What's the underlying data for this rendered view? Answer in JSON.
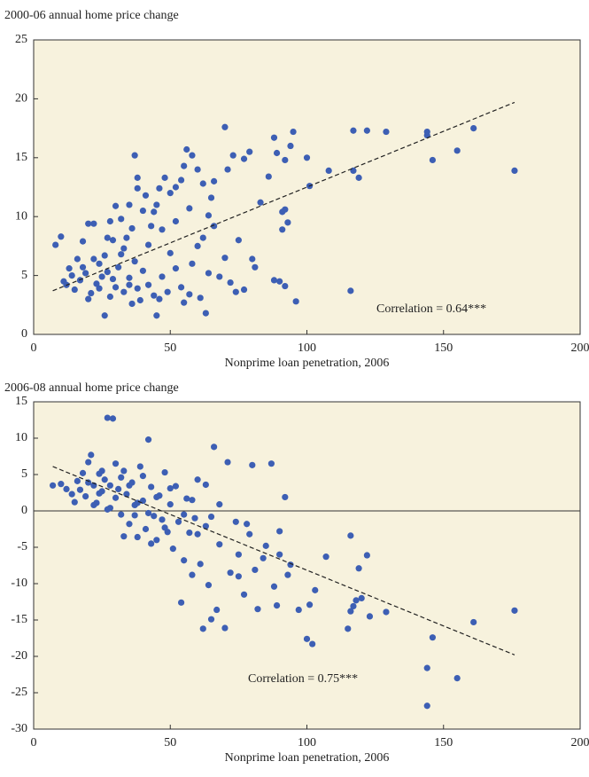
{
  "chart_data": [
    {
      "type": "scatter",
      "title": "2000-06 annual home price change",
      "xlabel": "Nonprime loan penetration, 2006",
      "annotation": "Correlation = 0.64***",
      "color": "#3d5fb4",
      "xlim": [
        0,
        200
      ],
      "xticks": [
        0,
        50,
        100,
        150,
        200
      ],
      "ylim": [
        0,
        25
      ],
      "yticks": [
        0,
        5,
        10,
        15,
        20,
        25
      ],
      "trendline": {
        "x": [
          7,
          176
        ],
        "y": [
          3.7,
          19.7
        ]
      },
      "x": [
        70,
        95,
        117,
        122,
        129,
        144,
        161,
        176,
        155,
        146,
        144,
        116,
        96,
        117,
        119,
        108,
        101,
        100,
        92,
        94,
        88,
        89,
        91,
        92,
        93,
        91,
        90,
        92,
        88,
        80,
        81,
        74,
        77,
        86,
        83,
        79,
        77,
        73,
        71,
        66,
        65,
        64,
        62,
        60,
        58,
        56,
        55,
        54,
        52,
        50,
        48,
        46,
        45,
        44,
        43,
        41,
        40,
        38,
        37,
        38,
        36,
        35,
        34,
        32,
        30,
        29,
        28,
        27,
        26,
        24,
        22,
        20,
        18,
        16,
        14,
        12,
        10,
        8,
        11,
        13,
        15,
        17,
        19,
        21,
        23,
        25,
        26,
        28,
        30,
        31,
        33,
        35,
        36,
        38,
        40,
        42,
        44,
        45,
        47,
        49,
        50,
        52,
        54,
        55,
        57,
        58,
        60,
        61,
        62,
        63,
        64,
        66,
        68,
        70,
        72,
        75,
        18,
        22,
        27,
        32,
        37,
        42,
        47,
        52,
        57,
        35,
        29,
        24,
        39,
        46,
        20,
        33
      ],
      "y": [
        17.6,
        17.2,
        17.3,
        17.3,
        17.2,
        17.2,
        17.5,
        13.9,
        15.6,
        14.8,
        16.9,
        3.7,
        2.8,
        13.9,
        13.3,
        13.9,
        12.6,
        15.0,
        14.8,
        16.0,
        16.7,
        15.4,
        10.4,
        10.6,
        9.5,
        8.9,
        4.5,
        4.1,
        4.6,
        6.4,
        5.7,
        3.6,
        3.8,
        13.4,
        11.2,
        15.5,
        14.9,
        15.2,
        14.0,
        13.0,
        11.6,
        10.1,
        12.8,
        14.0,
        15.2,
        15.7,
        14.3,
        13.1,
        12.5,
        12.0,
        13.3,
        12.4,
        11.0,
        10.4,
        9.2,
        11.8,
        10.5,
        12.4,
        15.2,
        13.3,
        9.0,
        11.0,
        8.2,
        9.8,
        10.9,
        8.0,
        9.6,
        8.2,
        6.7,
        6.0,
        9.4,
        9.4,
        7.9,
        6.4,
        5.0,
        4.2,
        8.3,
        7.6,
        4.5,
        5.6,
        3.8,
        4.6,
        5.2,
        3.5,
        4.3,
        4.9,
        1.6,
        3.2,
        4.0,
        5.7,
        3.6,
        4.8,
        2.6,
        3.9,
        5.4,
        4.2,
        3.3,
        1.6,
        4.9,
        3.6,
        6.9,
        5.6,
        4.0,
        2.7,
        3.4,
        6.0,
        7.5,
        3.1,
        8.2,
        1.8,
        5.2,
        9.2,
        4.9,
        6.5,
        4.4,
        8.0,
        5.7,
        6.4,
        5.3,
        6.8,
        6.2,
        7.6,
        8.9,
        9.6,
        10.7,
        4.2,
        4.7,
        3.9,
        2.9,
        3.0,
        3.0,
        7.3
      ]
    },
    {
      "type": "scatter",
      "title": "2006-08 annual home price change",
      "xlabel": "Nonprime loan penetration, 2006",
      "annotation": "Correlation = 0.75***",
      "color": "#3d5fb4",
      "xlim": [
        0,
        200
      ],
      "xticks": [
        0,
        50,
        100,
        150,
        200
      ],
      "ylim": [
        -30,
        15
      ],
      "yticks": [
        -30,
        -25,
        -20,
        -15,
        -10,
        -5,
        0,
        5,
        10,
        15
      ],
      "hline": 0,
      "trendline": {
        "x": [
          7,
          176
        ],
        "y": [
          6.1,
          -19.8
        ]
      },
      "x": [
        7,
        10,
        12,
        14,
        16,
        18,
        19,
        20,
        21,
        22,
        23,
        24,
        25,
        26,
        27,
        29,
        28,
        30,
        31,
        32,
        33,
        34,
        35,
        36,
        37,
        38,
        39,
        40,
        41,
        42,
        43,
        44,
        45,
        46,
        47,
        48,
        49,
        50,
        51,
        52,
        53,
        54,
        55,
        56,
        57,
        58,
        59,
        60,
        61,
        62,
        63,
        64,
        65,
        66,
        67,
        68,
        70,
        71,
        72,
        74,
        75,
        77,
        79,
        80,
        81,
        82,
        85,
        87,
        88,
        89,
        90,
        92,
        93,
        94,
        97,
        100,
        101,
        102,
        103,
        107,
        115,
        116,
        116,
        117,
        118,
        120,
        119,
        122,
        123,
        129,
        144,
        144,
        146,
        155,
        161,
        176,
        15,
        17,
        22,
        25,
        27,
        30,
        32,
        35,
        37,
        40,
        42,
        45,
        48,
        50,
        55,
        58,
        60,
        63,
        65,
        68,
        75,
        78,
        84,
        90,
        33,
        38,
        43,
        28,
        24,
        20
      ],
      "y": [
        3.5,
        3.7,
        3.0,
        2.3,
        4.1,
        5.2,
        2.0,
        6.7,
        7.7,
        3.5,
        1.1,
        5.1,
        2.7,
        4.3,
        12.8,
        12.7,
        0.4,
        6.5,
        3.0,
        -0.5,
        5.5,
        2.3,
        -1.8,
        3.9,
        0.8,
        -3.6,
        6.1,
        1.4,
        -2.5,
        9.8,
        3.3,
        -0.7,
        -4.0,
        2.1,
        -1.2,
        5.3,
        -2.9,
        0.9,
        -5.2,
        3.4,
        -1.5,
        -12.6,
        -6.8,
        1.7,
        -3.0,
        -8.8,
        -1.0,
        4.3,
        -7.3,
        -16.2,
        -2.1,
        -10.2,
        -14.9,
        8.8,
        -13.6,
        -4.6,
        -16.1,
        6.7,
        -8.5,
        -1.5,
        -9.0,
        -11.5,
        -3.2,
        6.3,
        -8.1,
        -13.5,
        -4.8,
        6.5,
        -10.4,
        -13.0,
        -6.0,
        1.9,
        -8.8,
        -7.4,
        -13.6,
        -17.6,
        -12.9,
        -18.3,
        -10.9,
        -6.3,
        -16.2,
        -3.4,
        -13.8,
        -13.1,
        -12.3,
        -12.0,
        -7.9,
        -6.1,
        -14.5,
        -13.9,
        -21.6,
        -26.8,
        -17.4,
        -23.0,
        -15.3,
        -13.7,
        1.2,
        2.9,
        0.8,
        5.5,
        0.2,
        1.8,
        4.6,
        3.5,
        -0.6,
        4.8,
        -0.3,
        1.9,
        -2.3,
        3.1,
        -0.5,
        1.5,
        -3.2,
        3.6,
        -0.8,
        0.9,
        -6.0,
        -1.8,
        -6.5,
        -2.8,
        -3.5,
        1.1,
        -4.5,
        3.5,
        2.4,
        3.9
      ]
    }
  ]
}
